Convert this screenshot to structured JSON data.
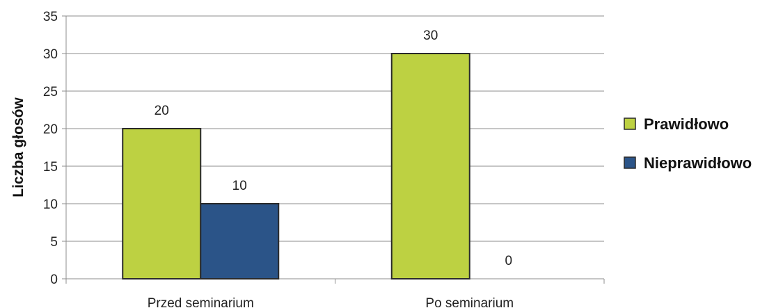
{
  "chart_data": {
    "type": "bar",
    "ylabel": "Liczba głosów",
    "xlabel": "",
    "ylim": [
      0,
      35
    ],
    "yticks": [
      0,
      5,
      10,
      15,
      20,
      25,
      30,
      35
    ],
    "grid": true,
    "legend_position": "right",
    "categories": [
      "Przed seminarium",
      "Po seminarium"
    ],
    "series": [
      {
        "name": "Prawidłowo",
        "values": [
          20,
          30
        ],
        "color": "#bdd142"
      },
      {
        "name": "Nieprawidłowo",
        "values": [
          10,
          0
        ],
        "color": "#2b5488"
      }
    ]
  }
}
